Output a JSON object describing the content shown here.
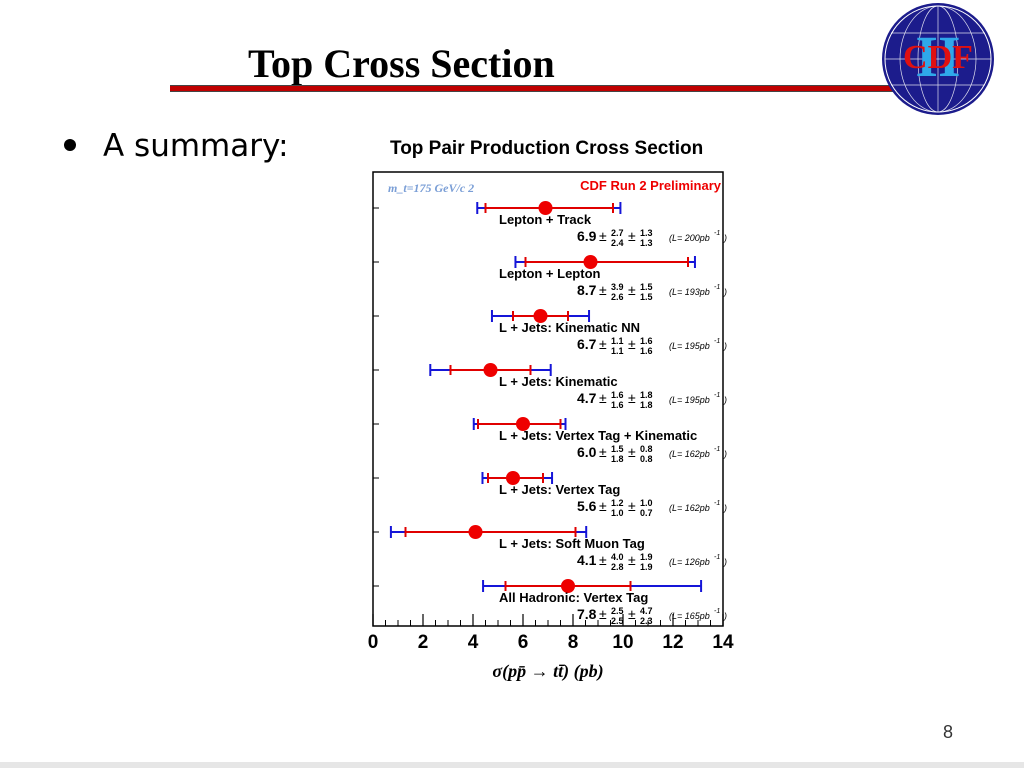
{
  "slide": {
    "title": "Top Cross Section",
    "bullet": "A summary:",
    "page_number": "8"
  },
  "logo": {
    "text": "CDF",
    "numeral": "II"
  },
  "colors": {
    "title_rule": "#c00000",
    "stat_error": "#e00000",
    "total_error": "#1515d8",
    "marker": "#ee0000",
    "mass_label": "#7a9ed6",
    "run_label": "#ee0000"
  },
  "chart_data": {
    "type": "scatter",
    "title": "Top Pair Production Cross Section",
    "mass_label": "m_t=175 GeV/c 2",
    "experiment_label": "CDF Run 2 Preliminary",
    "xlabel": "σ(pp̄ → tt̄) (pb)",
    "xlim": [
      0,
      14
    ],
    "xticks": [
      "0",
      "2",
      "4",
      "6",
      "8",
      "10",
      "12",
      "14"
    ],
    "measurements": [
      {
        "label": "Lepton + Track",
        "value": 6.9,
        "value_text": "6.9",
        "stat_up": 2.7,
        "stat_down": 2.4,
        "syst_up": 1.3,
        "syst_down": 1.3,
        "stat_up_text": "2.7",
        "stat_down_text": "2.4",
        "syst_up_text": "1.3",
        "syst_down_text": "1.3",
        "lumi": "(L= 200pb",
        "lumi_exp": "-1",
        "lumi_close": ")"
      },
      {
        "label": "Lepton + Lepton",
        "value": 8.7,
        "value_text": "8.7",
        "stat_up": 3.9,
        "stat_down": 2.6,
        "syst_up": 1.5,
        "syst_down": 1.5,
        "stat_up_text": "3.9",
        "stat_down_text": "2.6",
        "syst_up_text": "1.5",
        "syst_down_text": "1.5",
        "lumi": "(L= 193pb",
        "lumi_exp": "-1",
        "lumi_close": ")"
      },
      {
        "label": "L + Jets: Kinematic NN",
        "value": 6.7,
        "value_text": "6.7",
        "stat_up": 1.1,
        "stat_down": 1.1,
        "syst_up": 1.6,
        "syst_down": 1.6,
        "stat_up_text": "1.1",
        "stat_down_text": "1.1",
        "syst_up_text": "1.6",
        "syst_down_text": "1.6",
        "lumi": "(L= 195pb",
        "lumi_exp": "-1",
        "lumi_close": ")"
      },
      {
        "label": "L + Jets: Kinematic",
        "value": 4.7,
        "value_text": "4.7",
        "stat_up": 1.6,
        "stat_down": 1.6,
        "syst_up": 1.8,
        "syst_down": 1.8,
        "stat_up_text": "1.6",
        "stat_down_text": "1.6",
        "syst_up_text": "1.8",
        "syst_down_text": "1.8",
        "lumi": "(L= 195pb",
        "lumi_exp": "-1",
        "lumi_close": ")"
      },
      {
        "label": "L + Jets: Vertex Tag + Kinematic",
        "value": 6.0,
        "value_text": "6.0",
        "stat_up": 1.5,
        "stat_down": 1.8,
        "syst_up": 0.8,
        "syst_down": 0.8,
        "stat_up_text": "1.5",
        "stat_down_text": "1.8",
        "syst_up_text": "0.8",
        "syst_down_text": "0.8",
        "lumi": "(L= 162pb",
        "lumi_exp": "-1",
        "lumi_close": ")"
      },
      {
        "label": "L + Jets: Vertex Tag",
        "value": 5.6,
        "value_text": "5.6",
        "stat_up": 1.2,
        "stat_down": 1.0,
        "syst_up": 1.0,
        "syst_down": 0.7,
        "stat_up_text": "1.2",
        "stat_down_text": "1.0",
        "syst_up_text": "1.0",
        "syst_down_text": "0.7",
        "lumi": "(L= 162pb",
        "lumi_exp": "-1",
        "lumi_close": ")"
      },
      {
        "label": "L + Jets: Soft Muon Tag",
        "value": 4.1,
        "value_text": "4.1",
        "stat_up": 4.0,
        "stat_down": 2.8,
        "syst_up": 1.9,
        "syst_down": 1.9,
        "stat_up_text": "4.0",
        "stat_down_text": "2.8",
        "syst_up_text": "1.9",
        "syst_down_text": "1.9",
        "lumi": "(L= 126pb",
        "lumi_exp": "-1",
        "lumi_close": ")"
      },
      {
        "label": "All Hadronic: Vertex Tag",
        "value": 7.8,
        "value_text": "7.8",
        "stat_up": 2.5,
        "stat_down": 2.5,
        "syst_up": 4.7,
        "syst_down": 2.3,
        "stat_up_text": "2.5",
        "stat_down_text": "2.5",
        "syst_up_text": "4.7",
        "syst_down_text": "2.3",
        "lumi": "(L= 165pb",
        "lumi_exp": "-1",
        "lumi_close": ")"
      }
    ]
  }
}
